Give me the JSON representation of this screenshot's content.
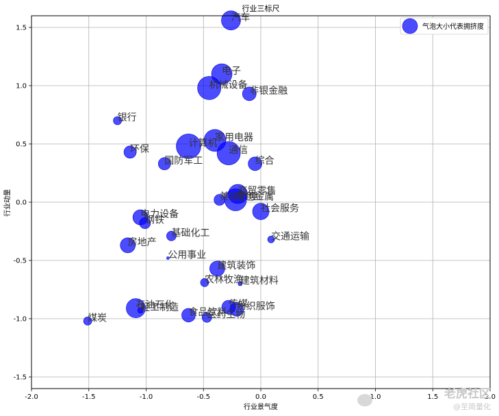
{
  "chart_data": {
    "type": "scatter",
    "title": "行业三标尺",
    "xlabel": "行业景气度",
    "ylabel": "行业动量",
    "xlim": [
      -2.0,
      2.0
    ],
    "ylim": [
      -1.6,
      1.6
    ],
    "xticks": [
      "-2.0",
      "-1.5",
      "-1.0",
      "-0.5",
      "0.0",
      "0.5",
      "1.0",
      "1.5",
      "2.0"
    ],
    "xtick_values": [
      -2.0,
      -1.5,
      -1.0,
      -0.5,
      0.0,
      0.5,
      1.0,
      1.5,
      2.0
    ],
    "yticks": [
      "1.5",
      "1.0",
      "0.5",
      "0.0",
      "-0.5",
      "-1.0",
      "-1.5"
    ],
    "ytick_values": [
      1.5,
      1.0,
      0.5,
      0.0,
      -0.5,
      -1.0,
      -1.5
    ],
    "grid": true,
    "legend": {
      "position": "top-right",
      "label": "气泡大小代表拥挤度"
    },
    "color": "#0000ff",
    "points": [
      {
        "label": "汽车",
        "x": -0.26,
        "y": 1.56,
        "size": 14
      },
      {
        "label": "电子",
        "x": -0.34,
        "y": 1.1,
        "size": 15
      },
      {
        "label": "机械设备",
        "x": -0.45,
        "y": 0.98,
        "size": 17
      },
      {
        "label": "非银金融",
        "x": -0.1,
        "y": 0.93,
        "size": 10
      },
      {
        "label": "银行",
        "x": -1.25,
        "y": 0.7,
        "size": 6
      },
      {
        "label": "家用电器",
        "x": -0.4,
        "y": 0.53,
        "size": 16
      },
      {
        "label": "计算机",
        "x": -0.63,
        "y": 0.48,
        "size": 18
      },
      {
        "label": "通信",
        "x": -0.28,
        "y": 0.42,
        "size": 17
      },
      {
        "label": "环保",
        "x": -1.14,
        "y": 0.43,
        "size": 9
      },
      {
        "label": "国防军工",
        "x": -0.84,
        "y": 0.33,
        "size": 9
      },
      {
        "label": "综合",
        "x": -0.05,
        "y": 0.33,
        "size": 10
      },
      {
        "label": "商贸零售",
        "x": -0.2,
        "y": 0.07,
        "size": 14
      },
      {
        "label": "有色金属",
        "x": -0.22,
        "y": 0.02,
        "size": 16
      },
      {
        "label": "美容护理",
        "x": -0.36,
        "y": 0.02,
        "size": 8
      },
      {
        "label": "社会服务",
        "x": 0.0,
        "y": -0.08,
        "size": 12
      },
      {
        "label": "电力设备",
        "x": -1.05,
        "y": -0.13,
        "size": 11
      },
      {
        "label": "钢铁",
        "x": -1.01,
        "y": -0.18,
        "size": 8
      },
      {
        "label": "基础化工",
        "x": -0.78,
        "y": -0.29,
        "size": 7
      },
      {
        "label": "交通运输",
        "x": 0.09,
        "y": -0.32,
        "size": 5
      },
      {
        "label": "房地产",
        "x": -1.16,
        "y": -0.37,
        "size": 11
      },
      {
        "label": "公用事业",
        "x": -0.81,
        "y": -0.48,
        "size": 2
      },
      {
        "label": "建筑装饰",
        "x": -0.38,
        "y": -0.57,
        "size": 11
      },
      {
        "label": "农林牧渔",
        "x": -0.49,
        "y": -0.69,
        "size": 6
      },
      {
        "label": "建筑材料",
        "x": -0.18,
        "y": -0.7,
        "size": 3
      },
      {
        "label": "石油石化",
        "x": -1.09,
        "y": -0.91,
        "size": 14
      },
      {
        "label": "轻工制造",
        "x": -1.05,
        "y": -0.93,
        "size": 4
      },
      {
        "label": "食品饮料",
        "x": -0.63,
        "y": -0.97,
        "size": 10
      },
      {
        "label": "医药生物",
        "x": -0.47,
        "y": -0.99,
        "size": 7
      },
      {
        "label": "传媒",
        "x": -0.28,
        "y": -0.9,
        "size": 10
      },
      {
        "label": "纺织服饰",
        "x": -0.21,
        "y": -0.92,
        "size": 10
      },
      {
        "label": "煤炭",
        "x": -1.51,
        "y": -1.02,
        "size": 6
      }
    ]
  },
  "watermark": {
    "main": "老虎社区",
    "sub": "@至简量化"
  }
}
